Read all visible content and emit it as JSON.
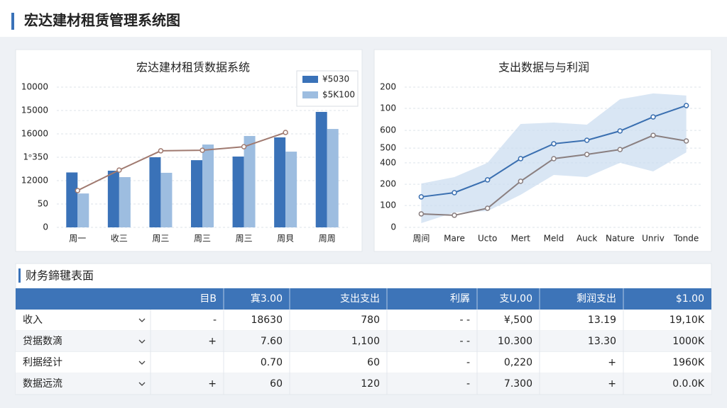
{
  "header": {
    "title": "宏达建材租赁管理系统图"
  },
  "chart_data": [
    {
      "type": "bar",
      "title": "宏达建材租赁数据系统",
      "categories": [
        "周一",
        "收三",
        "周三",
        "周三",
        "周三",
        "周貝",
        "周周"
      ],
      "series": [
        {
          "name": "¥5030",
          "color": "#3a72b8",
          "values": [
            4700,
            4850,
            6000,
            5750,
            6060,
            7700,
            9880
          ]
        },
        {
          "name": "$5K100",
          "color": "#9dbde0",
          "values": [
            2900,
            4300,
            4670,
            7090,
            7820,
            6480,
            8420
          ]
        },
        {
          "type": "line",
          "color": "#a07a70",
          "values": [
            3150,
            4900,
            6550,
            6600,
            6900,
            8120,
            null
          ]
        }
      ],
      "ylim": [
        0,
        12000
      ],
      "yticks": [
        0,
        {
          "value": 2000,
          "label": "50"
        },
        {
          "value": 4000,
          "label": "12000"
        },
        {
          "value": 6000,
          "label": "1ᵒ350"
        },
        {
          "value": 8000,
          "label": "16000"
        },
        {
          "value": 10000,
          "label": "15000"
        },
        {
          "value": 12000,
          "label": "10000"
        }
      ],
      "grid": true,
      "legend": "top-right"
    },
    {
      "type": "line",
      "title": "支出数据与与利润",
      "categories": [
        "周间",
        "Mare",
        "Ucto",
        "Mert",
        "Meld",
        "Auck",
        "Nature",
        "Unriv",
        "Tonde"
      ],
      "band": {
        "color": "#c9dcf0",
        "lower": [
          24,
          85,
          93,
          186,
          299,
          287,
          368,
          319,
          428
        ],
        "upper": [
          250,
          287,
          368,
          590,
          598,
          586,
          731,
          764,
          752
        ]
      },
      "series": [
        {
          "color": "#3a6fb0",
          "values": [
            174,
            198,
            271,
            392,
            477,
            497,
            550,
            630,
            695
          ]
        },
        {
          "color": "#8a7f80",
          "values": [
            77,
            69,
            109,
            263,
            392,
            416,
            444,
            525,
            493
          ]
        }
      ],
      "ylim": [
        0,
        800
      ],
      "yticks": [
        0,
        {
          "value": 125,
          "label": "100"
        },
        {
          "value": 246,
          "label": "200"
        },
        {
          "value": 368,
          "label": "400"
        },
        {
          "value": 452,
          "label": "500"
        },
        {
          "value": 553,
          "label": "600"
        },
        {
          "value": 679,
          "label": "100"
        },
        {
          "value": 800,
          "label": "200"
        }
      ],
      "grid": true
    }
  ],
  "table": {
    "title": "财务鍗毽表面",
    "header": [
      "目B",
      "寘3.00",
      "支出支出",
      "利羼",
      "支U,00",
      "剩润支出",
      "$1.00"
    ],
    "rows": [
      [
        "收入",
        "-",
        "18630",
        "780",
        "- -",
        "¥,500",
        "13.19",
        "19,10K"
      ],
      [
        "贷据数滴",
        "+",
        "7.60",
        "1,100",
        "- -",
        "10.300",
        "13.30",
        "1000K"
      ],
      [
        "利据经计",
        null,
        "0.70",
        "60",
        "-",
        "0,220",
        "+",
        "1960K"
      ],
      [
        "数据远流",
        "+",
        "60",
        "120",
        "-",
        "7.300",
        "+",
        "0.0.0K"
      ]
    ]
  }
}
